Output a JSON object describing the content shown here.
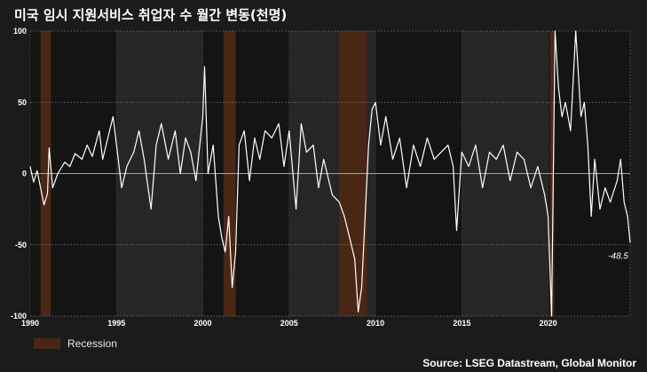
{
  "chart_data": {
    "type": "line",
    "title": "미국 임시 지원서비스 취업자 수 월간 변동(천명)",
    "xlabel": "",
    "ylabel": "",
    "xlim": [
      1990,
      2024.75
    ],
    "ylim": [
      -100,
      100
    ],
    "yticks": [
      100,
      50,
      0,
      -50,
      -100
    ],
    "xticks": [
      1990,
      1995,
      2000,
      2005,
      2010,
      2015,
      2020
    ],
    "grid": true,
    "legend_position": "bottom-left",
    "recessions": [
      [
        1990.6,
        1991.2
      ],
      [
        2001.2,
        2001.9
      ],
      [
        2007.9,
        2009.5
      ],
      [
        2020.1,
        2020.35
      ]
    ],
    "series": [
      {
        "values": [
          [
            1990.0,
            5
          ],
          [
            1990.2,
            -6
          ],
          [
            1990.4,
            2
          ],
          [
            1990.6,
            -10
          ],
          [
            1990.8,
            -22
          ],
          [
            1991.0,
            -14
          ],
          [
            1991.1,
            18
          ],
          [
            1991.3,
            -10
          ],
          [
            1991.6,
            0
          ],
          [
            1992.0,
            8
          ],
          [
            1992.3,
            5
          ],
          [
            1992.6,
            14
          ],
          [
            1993.0,
            10
          ],
          [
            1993.3,
            20
          ],
          [
            1993.6,
            12
          ],
          [
            1994.0,
            30
          ],
          [
            1994.2,
            10
          ],
          [
            1994.5,
            25
          ],
          [
            1994.8,
            40
          ],
          [
            1995.0,
            20
          ],
          [
            1995.3,
            -10
          ],
          [
            1995.6,
            5
          ],
          [
            1996.0,
            15
          ],
          [
            1996.3,
            30
          ],
          [
            1996.6,
            10
          ],
          [
            1997.0,
            -25
          ],
          [
            1997.3,
            20
          ],
          [
            1997.6,
            35
          ],
          [
            1998.0,
            10
          ],
          [
            1998.4,
            30
          ],
          [
            1998.7,
            0
          ],
          [
            1999.0,
            25
          ],
          [
            1999.3,
            15
          ],
          [
            1999.6,
            -5
          ],
          [
            2000.0,
            40
          ],
          [
            2000.1,
            75
          ],
          [
            2000.3,
            0
          ],
          [
            2000.6,
            20
          ],
          [
            2000.9,
            -30
          ],
          [
            2001.1,
            -45
          ],
          [
            2001.3,
            -55
          ],
          [
            2001.5,
            -30
          ],
          [
            2001.7,
            -80
          ],
          [
            2001.9,
            -55
          ],
          [
            2002.1,
            20
          ],
          [
            2002.4,
            30
          ],
          [
            2002.7,
            -5
          ],
          [
            2003.0,
            25
          ],
          [
            2003.3,
            10
          ],
          [
            2003.6,
            30
          ],
          [
            2004.0,
            25
          ],
          [
            2004.4,
            35
          ],
          [
            2004.7,
            5
          ],
          [
            2005.0,
            30
          ],
          [
            2005.4,
            -25
          ],
          [
            2005.7,
            35
          ],
          [
            2006.0,
            15
          ],
          [
            2006.4,
            20
          ],
          [
            2006.7,
            -10
          ],
          [
            2007.0,
            10
          ],
          [
            2007.5,
            -15
          ],
          [
            2007.9,
            -20
          ],
          [
            2008.2,
            -30
          ],
          [
            2008.5,
            -45
          ],
          [
            2008.8,
            -60
          ],
          [
            2009.0,
            -97
          ],
          [
            2009.2,
            -80
          ],
          [
            2009.4,
            -30
          ],
          [
            2009.6,
            20
          ],
          [
            2009.8,
            45
          ],
          [
            2010.0,
            50
          ],
          [
            2010.3,
            20
          ],
          [
            2010.6,
            40
          ],
          [
            2011.0,
            10
          ],
          [
            2011.4,
            25
          ],
          [
            2011.8,
            -10
          ],
          [
            2012.2,
            20
          ],
          [
            2012.6,
            5
          ],
          [
            2013.0,
            25
          ],
          [
            2013.4,
            10
          ],
          [
            2013.8,
            15
          ],
          [
            2014.2,
            20
          ],
          [
            2014.5,
            5
          ],
          [
            2014.7,
            -40
          ],
          [
            2015.0,
            15
          ],
          [
            2015.4,
            5
          ],
          [
            2015.8,
            20
          ],
          [
            2016.2,
            -10
          ],
          [
            2016.6,
            15
          ],
          [
            2017.0,
            10
          ],
          [
            2017.4,
            20
          ],
          [
            2017.8,
            -5
          ],
          [
            2018.2,
            15
          ],
          [
            2018.6,
            10
          ],
          [
            2019.0,
            -10
          ],
          [
            2019.4,
            5
          ],
          [
            2019.8,
            -15
          ],
          [
            2020.0,
            -30
          ],
          [
            2020.2,
            -100
          ],
          [
            2020.4,
            100
          ],
          [
            2020.6,
            60
          ],
          [
            2020.8,
            40
          ],
          [
            2021.0,
            50
          ],
          [
            2021.3,
            30
          ],
          [
            2021.6,
            100
          ],
          [
            2021.9,
            40
          ],
          [
            2022.1,
            50
          ],
          [
            2022.3,
            20
          ],
          [
            2022.5,
            -30
          ],
          [
            2022.7,
            10
          ],
          [
            2023.0,
            -25
          ],
          [
            2023.3,
            -10
          ],
          [
            2023.6,
            -20
          ],
          [
            2024.0,
            -5
          ],
          [
            2024.2,
            10
          ],
          [
            2024.4,
            -20
          ],
          [
            2024.6,
            -30
          ],
          [
            2024.75,
            -48.5
          ]
        ]
      }
    ],
    "last_value_label": "-48.5",
    "legend_label": "Recession",
    "source": "Source: LSEG Datastream, Global Monitor",
    "colors": {
      "background": "#1b1b1b",
      "plot_band_dark": "#141414",
      "plot_band_light": "#262626",
      "recession": "#4a2714",
      "line": "#ffffff",
      "grid": "#7a7a7a"
    }
  }
}
